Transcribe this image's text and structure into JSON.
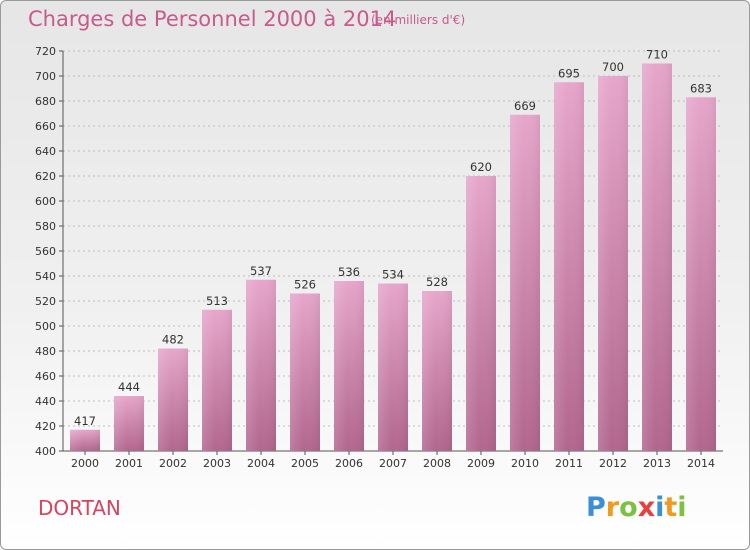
{
  "header": {
    "title": "Charges de Personnel 2000 à 2014",
    "subtitle": "(en milliers d'€)"
  },
  "footer": {
    "town": "DORTAN",
    "logo_text": "Proxiti"
  },
  "colors": {
    "title": "#c85a8c",
    "town": "#d7445e",
    "bar_light": "#e6a6cb",
    "bar_dark": "#b2668e"
  },
  "chart_data": {
    "type": "bar",
    "title": "Charges de Personnel 2000 à 2014",
    "subtitle": "(en milliers d'€)",
    "categories": [
      "2000",
      "2001",
      "2002",
      "2003",
      "2004",
      "2005",
      "2006",
      "2007",
      "2008",
      "2009",
      "2010",
      "2011",
      "2012",
      "2013",
      "2014"
    ],
    "values": [
      417,
      444,
      482,
      513,
      537,
      526,
      536,
      534,
      528,
      620,
      669,
      695,
      700,
      710,
      683
    ],
    "ylim": [
      400,
      720
    ],
    "yticks": [
      400,
      420,
      440,
      460,
      480,
      500,
      520,
      540,
      560,
      580,
      600,
      620,
      640,
      660,
      680,
      700,
      720
    ],
    "grid": true
  }
}
